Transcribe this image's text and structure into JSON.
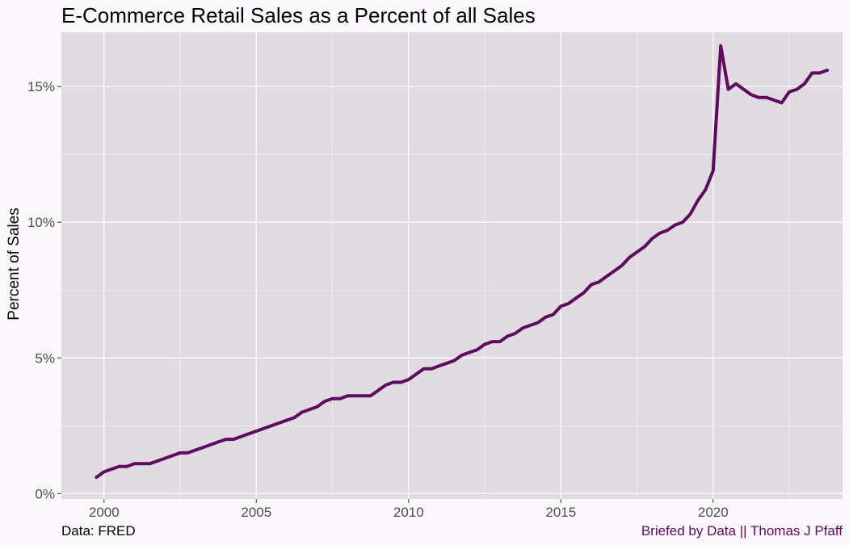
{
  "colors": {
    "panel": "#e0dbe0",
    "grid_major": "#ffffff",
    "line": "#5e0a5e",
    "background": "#faf8fa",
    "caption_right": "#5e0a5e"
  },
  "chart_data": {
    "type": "line",
    "title": "E-Commerce Retail Sales as a Percent of all Sales",
    "xlabel": "",
    "ylabel": "Percent of Sales",
    "xlim": [
      1998.6,
      2024.25
    ],
    "ylim": [
      -0.2,
      17.0
    ],
    "x_ticks": [
      2000,
      2005,
      2010,
      2015,
      2020
    ],
    "x_tick_labels": [
      "2000",
      "2005",
      "2010",
      "2015",
      "2020"
    ],
    "y_ticks": [
      0,
      5,
      10,
      15
    ],
    "y_tick_labels": [
      "0%",
      "5%",
      "10%",
      "15%"
    ],
    "grid": true,
    "legend": "none",
    "series": [
      {
        "x": [
          1999.75,
          2000.0,
          2000.25,
          2000.5,
          2000.75,
          2001.0,
          2001.25,
          2001.5,
          2001.75,
          2002.0,
          2002.25,
          2002.5,
          2002.75,
          2003.0,
          2003.25,
          2003.5,
          2003.75,
          2004.0,
          2004.25,
          2004.5,
          2004.75,
          2005.0,
          2005.25,
          2005.5,
          2005.75,
          2006.0,
          2006.25,
          2006.5,
          2006.75,
          2007.0,
          2007.25,
          2007.5,
          2007.75,
          2008.0,
          2008.25,
          2008.5,
          2008.75,
          2009.0,
          2009.25,
          2009.5,
          2009.75,
          2010.0,
          2010.25,
          2010.5,
          2010.75,
          2011.0,
          2011.25,
          2011.5,
          2011.75,
          2012.0,
          2012.25,
          2012.5,
          2012.75,
          2013.0,
          2013.25,
          2013.5,
          2013.75,
          2014.0,
          2014.25,
          2014.5,
          2014.75,
          2015.0,
          2015.25,
          2015.5,
          2015.75,
          2016.0,
          2016.25,
          2016.5,
          2016.75,
          2017.0,
          2017.25,
          2017.5,
          2017.75,
          2018.0,
          2018.25,
          2018.5,
          2018.75,
          2019.0,
          2019.25,
          2019.5,
          2019.75,
          2020.0,
          2020.25,
          2020.5,
          2020.75,
          2021.0,
          2021.25,
          2021.5,
          2021.75,
          2022.0,
          2022.25,
          2022.5,
          2022.75,
          2023.0,
          2023.25,
          2023.5,
          2023.75
        ],
        "y": [
          0.6,
          0.8,
          0.9,
          1.0,
          1.0,
          1.1,
          1.1,
          1.1,
          1.2,
          1.3,
          1.4,
          1.5,
          1.5,
          1.6,
          1.7,
          1.8,
          1.9,
          2.0,
          2.0,
          2.1,
          2.2,
          2.3,
          2.4,
          2.5,
          2.6,
          2.7,
          2.8,
          3.0,
          3.1,
          3.2,
          3.4,
          3.5,
          3.5,
          3.6,
          3.6,
          3.6,
          3.6,
          3.8,
          4.0,
          4.1,
          4.1,
          4.2,
          4.4,
          4.6,
          4.6,
          4.7,
          4.8,
          4.9,
          5.1,
          5.2,
          5.3,
          5.5,
          5.6,
          5.6,
          5.8,
          5.9,
          6.1,
          6.2,
          6.3,
          6.5,
          6.6,
          6.9,
          7.0,
          7.2,
          7.4,
          7.7,
          7.8,
          8.0,
          8.2,
          8.4,
          8.7,
          8.9,
          9.1,
          9.4,
          9.6,
          9.7,
          9.9,
          10.0,
          10.3,
          10.8,
          11.2,
          11.9,
          16.5,
          14.9,
          15.1,
          14.9,
          14.7,
          14.6,
          14.6,
          14.5,
          14.4,
          14.8,
          14.9,
          15.1,
          15.5,
          15.5,
          15.6
        ]
      }
    ]
  },
  "caption": {
    "left": "Data: FRED",
    "right": "Briefed by Data || Thomas J Pfaff"
  }
}
